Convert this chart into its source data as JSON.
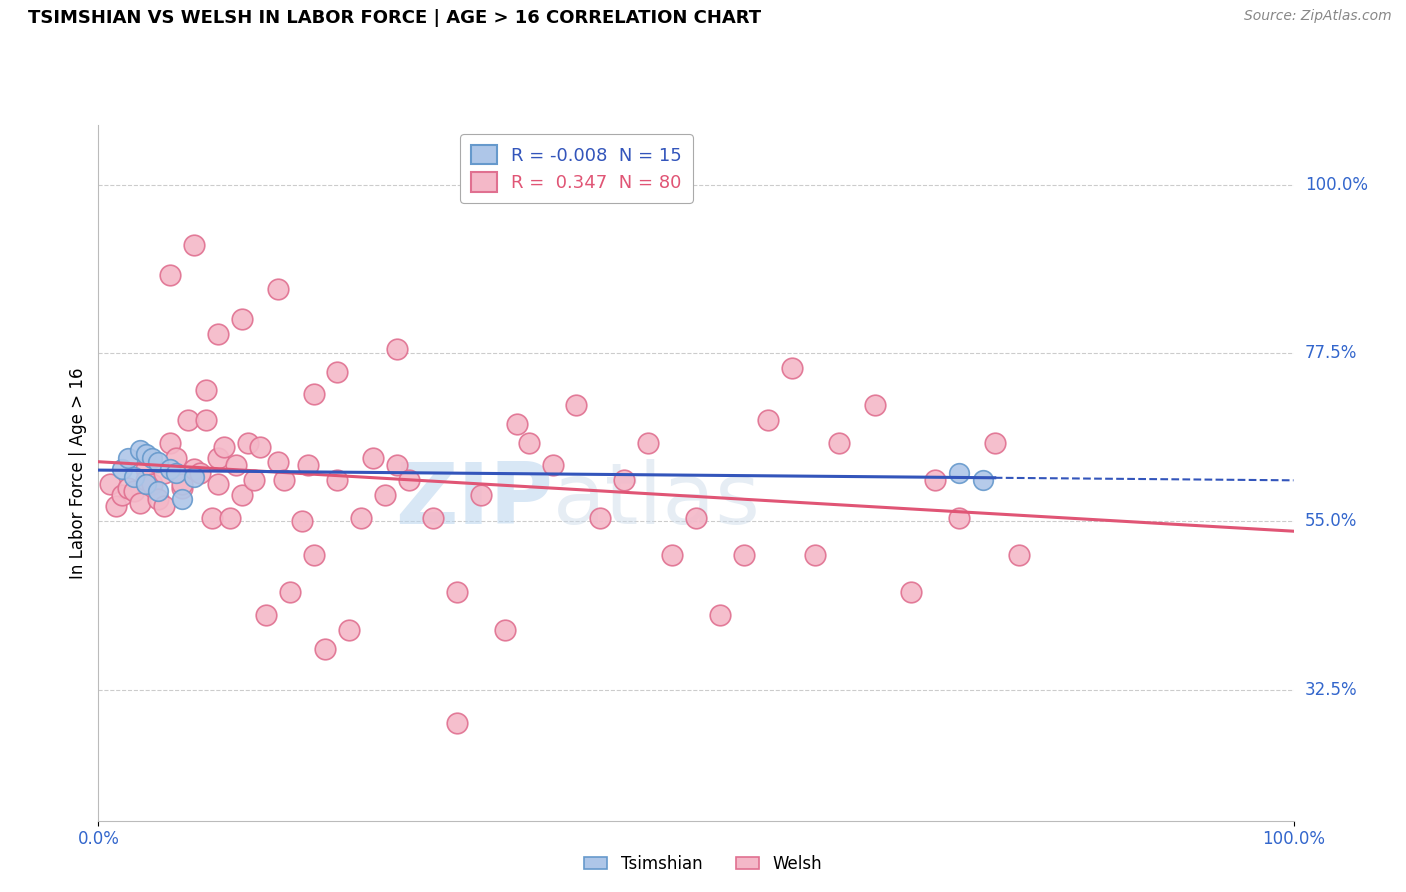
{
  "title": "TSIMSHIAN VS WELSH IN LABOR FORCE | AGE > 16 CORRELATION CHART",
  "source_text": "Source: ZipAtlas.com",
  "ylabel": "In Labor Force | Age > 16",
  "xlim": [
    0.0,
    1.0
  ],
  "ylim": [
    0.15,
    1.08
  ],
  "x_tick_labels": [
    "0.0%",
    "100.0%"
  ],
  "x_tick_vals": [
    0.0,
    1.0
  ],
  "y_tick_labels_right": [
    "100.0%",
    "77.5%",
    "55.0%",
    "32.5%"
  ],
  "y_tick_vals_right": [
    1.0,
    0.775,
    0.55,
    0.325
  ],
  "hline_vals": [
    1.0,
    0.775,
    0.55,
    0.325
  ],
  "tsimshian_R": -0.008,
  "tsimshian_N": 15,
  "welsh_R": 0.347,
  "welsh_N": 80,
  "tsimshian_color": "#aec6e8",
  "tsimshian_edge": "#6699cc",
  "welsh_color": "#f4b8c8",
  "welsh_edge": "#e07090",
  "trend_tsimshian_color": "#3355bb",
  "trend_welsh_color": "#e05575",
  "watermark_zip": "ZIP",
  "watermark_atlas": "atlas",
  "tsimshian_x": [
    0.02,
    0.025,
    0.03,
    0.035,
    0.04,
    0.04,
    0.045,
    0.05,
    0.05,
    0.06,
    0.065,
    0.07,
    0.08,
    0.72,
    0.74
  ],
  "tsimshian_y": [
    0.62,
    0.635,
    0.61,
    0.645,
    0.64,
    0.6,
    0.635,
    0.63,
    0.59,
    0.62,
    0.615,
    0.58,
    0.61,
    0.615,
    0.605
  ],
  "welsh_x": [
    0.01,
    0.015,
    0.02,
    0.025,
    0.03,
    0.035,
    0.04,
    0.04,
    0.045,
    0.05,
    0.055,
    0.055,
    0.06,
    0.065,
    0.07,
    0.07,
    0.075,
    0.08,
    0.085,
    0.09,
    0.09,
    0.095,
    0.1,
    0.1,
    0.105,
    0.11,
    0.115,
    0.12,
    0.125,
    0.13,
    0.135,
    0.14,
    0.15,
    0.155,
    0.16,
    0.17,
    0.175,
    0.18,
    0.19,
    0.2,
    0.21,
    0.22,
    0.23,
    0.24,
    0.25,
    0.26,
    0.28,
    0.3,
    0.32,
    0.34,
    0.36,
    0.38,
    0.4,
    0.42,
    0.44,
    0.46,
    0.48,
    0.5,
    0.52,
    0.54,
    0.56,
    0.58,
    0.6,
    0.62,
    0.65,
    0.68,
    0.7,
    0.72,
    0.75,
    0.77,
    0.3,
    0.1,
    0.15,
    0.2,
    0.08,
    0.12,
    0.06,
    0.18,
    0.25,
    0.35
  ],
  "welsh_y": [
    0.6,
    0.57,
    0.585,
    0.595,
    0.59,
    0.575,
    0.62,
    0.605,
    0.6,
    0.58,
    0.57,
    0.615,
    0.655,
    0.635,
    0.595,
    0.6,
    0.685,
    0.62,
    0.615,
    0.725,
    0.685,
    0.555,
    0.635,
    0.6,
    0.65,
    0.555,
    0.625,
    0.585,
    0.655,
    0.605,
    0.65,
    0.425,
    0.63,
    0.605,
    0.455,
    0.55,
    0.625,
    0.505,
    0.38,
    0.605,
    0.405,
    0.555,
    0.635,
    0.585,
    0.625,
    0.605,
    0.555,
    0.455,
    0.585,
    0.405,
    0.655,
    0.625,
    0.705,
    0.555,
    0.605,
    0.655,
    0.505,
    0.555,
    0.425,
    0.505,
    0.685,
    0.755,
    0.505,
    0.655,
    0.705,
    0.455,
    0.605,
    0.555,
    0.655,
    0.505,
    0.28,
    0.8,
    0.86,
    0.75,
    0.92,
    0.82,
    0.88,
    0.72,
    0.78,
    0.68
  ]
}
